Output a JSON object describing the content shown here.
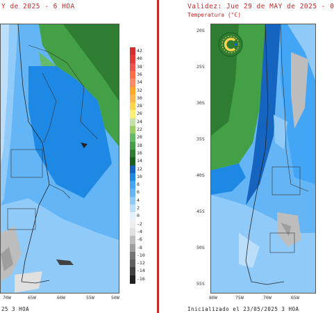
{
  "left_panel": {
    "title": "Y de 2025 - 6 HOA",
    "lon_labels": [
      "70W",
      "65W",
      "60W",
      "55W",
      "50W"
    ],
    "footer": "25 3 HOA",
    "colorbar": {
      "labels": [
        "42",
        "40",
        "38",
        "36",
        "34",
        "32",
        "30",
        "28",
        "26",
        "24",
        "22",
        "20",
        "18",
        "16",
        "14",
        "12",
        "10",
        "8",
        "6",
        "4",
        "2",
        "0",
        "-2",
        "-4",
        "-6",
        "-8",
        "-10",
        "-12",
        "-14",
        "-16"
      ],
      "colors": [
        "#d32f2f",
        "#e53935",
        "#ef5350",
        "#ff7043",
        "#ff8a65",
        "#ffa726",
        "#ffb74d",
        "#ffd54f",
        "#fff176",
        "#c5e1a5",
        "#9ccc65",
        "#66bb6a",
        "#43a047",
        "#2e7d32",
        "#1b5e20",
        "#1565c0",
        "#1e88e5",
        "#42a5f5",
        "#64b5f6",
        "#90caf9",
        "#bbdefb",
        "#e3f2fd",
        "#eeeeee",
        "#e0e0e0",
        "#bdbdbd",
        "#9e9e9e",
        "#757575",
        "#616161",
        "#424242",
        "#212121"
      ]
    }
  },
  "right_panel": {
    "title": "Validez: Jue 29 de MAY de 2025 - 0",
    "subtitle": "Temperatura (°C)",
    "lat_labels": [
      "20S",
      "25S",
      "30S",
      "35S",
      "40S",
      "45S",
      "50S",
      "55S"
    ],
    "lon_labels": [
      "80W",
      "75W",
      "70W",
      "65W"
    ],
    "footer": "Inicializado el 23/05/2025 3 HOA",
    "logo_letter": "C"
  }
}
